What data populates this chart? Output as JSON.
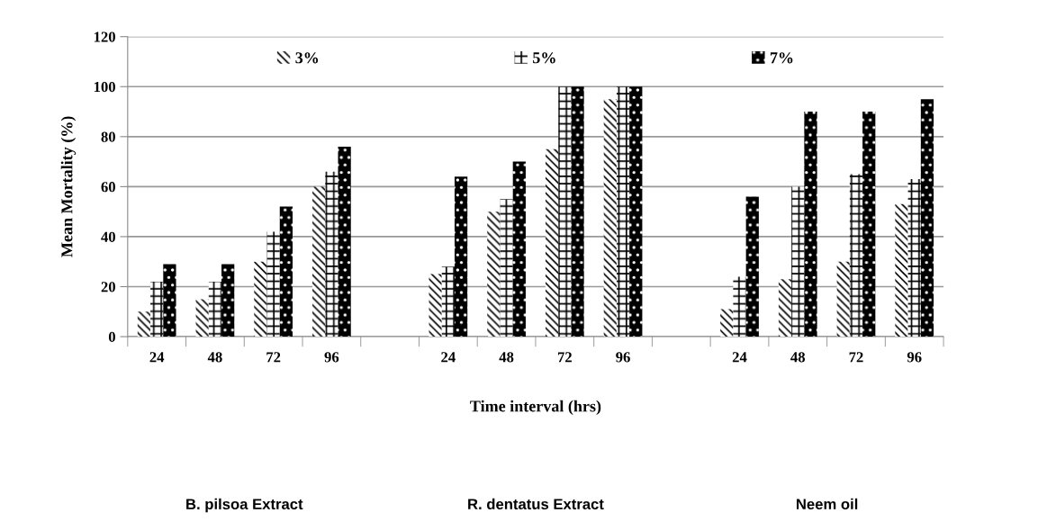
{
  "chart_data": {
    "type": "bar",
    "xlabel": "Time interval (hrs)",
    "ylabel": "Mean Mortality (%)",
    "categories": [
      "24",
      "48",
      "72",
      "96",
      null,
      "24",
      "48",
      "72",
      "96",
      null,
      "24",
      "48",
      "72",
      "96"
    ],
    "series": [
      {
        "name": "3%",
        "color": "#ffffff",
        "values": [
          10,
          15,
          30,
          60,
          null,
          25,
          50,
          75,
          95,
          null,
          11,
          23,
          30,
          53
        ]
      },
      {
        "name": "5%",
        "color": "#ffffff",
        "values": [
          22,
          22,
          42,
          66,
          null,
          28,
          55,
          100,
          100,
          null,
          24,
          60,
          65,
          63
        ]
      },
      {
        "name": "7%",
        "color": "#000000",
        "values": [
          29,
          29,
          52,
          76,
          null,
          64,
          70,
          100,
          100,
          null,
          56,
          90,
          90,
          95
        ]
      }
    ],
    "ylim": [
      0,
      120
    ],
    "yticks": [
      0,
      20,
      40,
      60,
      80,
      100,
      120
    ],
    "grid": "y",
    "legend": "top",
    "annotations": [
      "B. pilsoa Extract",
      "R. dentatus Extract",
      "Neem oil"
    ]
  }
}
